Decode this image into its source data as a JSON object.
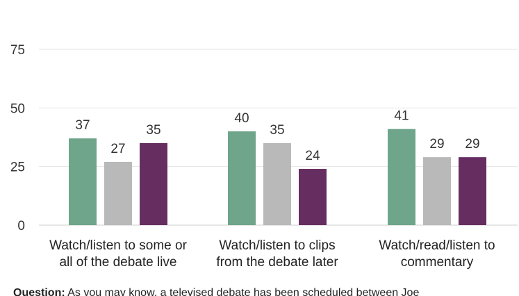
{
  "chart_data": {
    "type": "bar",
    "categories": [
      "Watch/listen to some or all of the debate live",
      "Watch/listen to clips from the debate later",
      "Watch/read/listen to commentary"
    ],
    "category_lines": [
      [
        "Watch/listen to some or",
        "all of the debate live"
      ],
      [
        "Watch/listen to clips",
        "from the debate later"
      ],
      [
        "Watch/read/listen to",
        "commentary"
      ]
    ],
    "series": [
      {
        "values": [
          37,
          40,
          41
        ],
        "color": "#6fa58a"
      },
      {
        "values": [
          27,
          35,
          29
        ],
        "color": "#b9b9b9"
      },
      {
        "values": [
          35,
          24,
          29
        ],
        "color": "#662d61"
      }
    ],
    "ylim": [
      0,
      75
    ],
    "yticks": [
      0,
      25,
      50,
      75
    ],
    "grid": true,
    "title": "",
    "xlabel": "",
    "ylabel": ""
  },
  "note": {
    "label": "Question:",
    "text": " As you may know, a televised debate has been scheduled between Joe"
  }
}
